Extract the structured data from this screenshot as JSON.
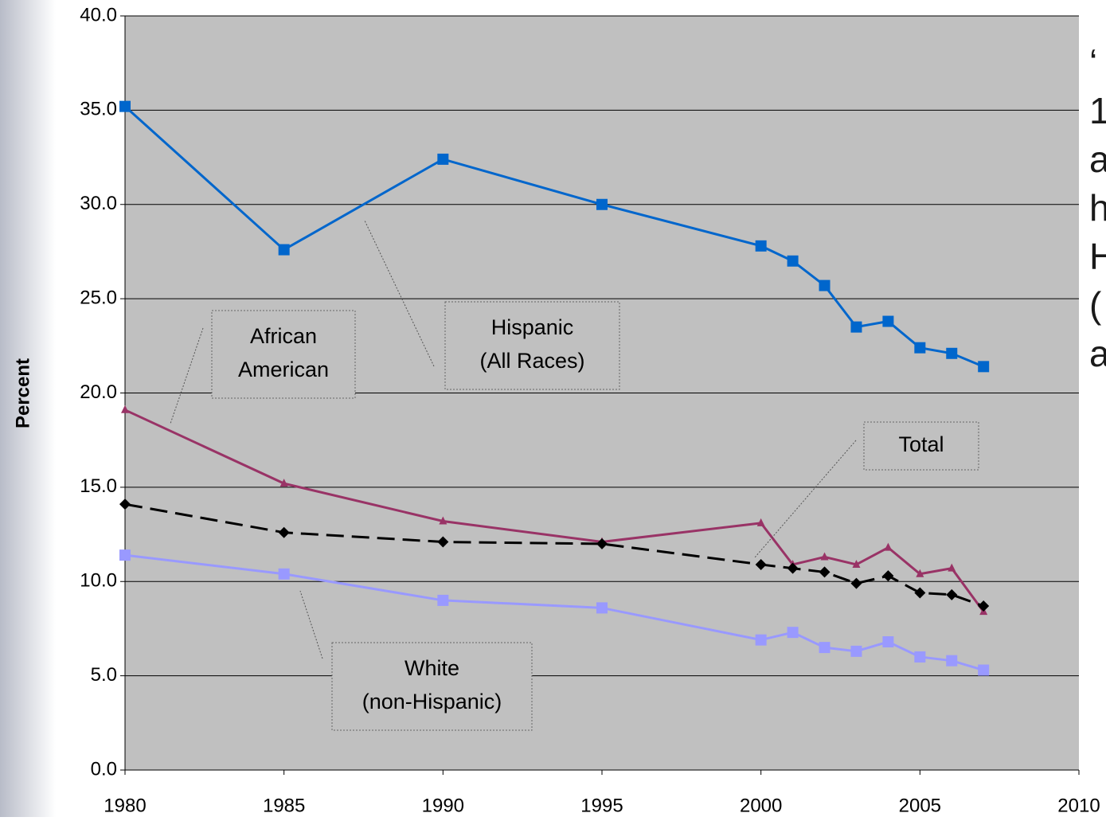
{
  "chart_data": {
    "type": "line",
    "ylabel": "Percent",
    "x": [
      1980,
      1985,
      1990,
      1995,
      2000,
      2001,
      2002,
      2003,
      2004,
      2005,
      2006,
      2007
    ],
    "xlim": [
      1980,
      2010
    ],
    "xticks": [
      1980,
      1985,
      1990,
      1995,
      2000,
      2005,
      2010
    ],
    "ylim": [
      0,
      40
    ],
    "yticks": [
      {
        "value": 0,
        "label": "0.0"
      },
      {
        "value": 5,
        "label": "5.0"
      },
      {
        "value": 10,
        "label": "10.0"
      },
      {
        "value": 15,
        "label": "15.0"
      },
      {
        "value": 20,
        "label": "20.0"
      },
      {
        "value": 25,
        "label": "25.0"
      },
      {
        "value": 30,
        "label": "30.0"
      },
      {
        "value": 35,
        "label": "35.0"
      },
      {
        "value": 40,
        "label": "40.0"
      }
    ],
    "grid": true,
    "series": [
      {
        "name": [
          "Hispanic",
          "(All Races)"
        ],
        "color": "#0066cc",
        "marker": "square",
        "values": [
          35.2,
          27.6,
          32.4,
          30.0,
          27.8,
          27.0,
          25.7,
          23.5,
          23.8,
          22.4,
          22.1,
          21.4
        ]
      },
      {
        "name": [
          "African",
          "American"
        ],
        "color": "#993366",
        "marker": "triangle",
        "values": [
          19.1,
          15.2,
          13.2,
          12.1,
          13.1,
          10.9,
          11.3,
          10.9,
          11.8,
          10.4,
          10.7,
          8.4
        ]
      },
      {
        "name": [
          "Total"
        ],
        "color": "#000000",
        "marker": "diamond",
        "dashed": true,
        "values": [
          14.1,
          12.6,
          12.1,
          12.0,
          10.9,
          10.7,
          10.5,
          9.9,
          10.3,
          9.4,
          9.3,
          8.7
        ]
      },
      {
        "name": [
          "White",
          "(non-Hispanic)"
        ],
        "color": "#9999ff",
        "marker": "square",
        "values": [
          11.4,
          10.4,
          9.0,
          8.6,
          6.9,
          7.3,
          6.5,
          6.3,
          6.8,
          6.0,
          5.8,
          5.3
        ]
      }
    ],
    "side_text": [
      "‘",
      "1",
      "a",
      "h",
      "H",
      "(",
      "a"
    ]
  }
}
